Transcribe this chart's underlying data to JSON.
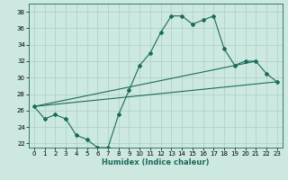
{
  "xlabel": "Humidex (Indice chaleur)",
  "xlim": [
    -0.5,
    23.5
  ],
  "ylim": [
    21.5,
    39.0
  ],
  "yticks": [
    22,
    24,
    26,
    28,
    30,
    32,
    34,
    36,
    38
  ],
  "xticks": [
    0,
    1,
    2,
    3,
    4,
    5,
    6,
    7,
    8,
    9,
    10,
    11,
    12,
    13,
    14,
    15,
    16,
    17,
    18,
    19,
    20,
    21,
    22,
    23
  ],
  "bg_color": "#cce8e0",
  "grid_color": "#aacfc8",
  "line_color": "#1a6b5a",
  "line1_x": [
    0,
    1,
    2,
    3,
    4,
    5,
    6,
    7,
    8,
    9,
    10,
    11,
    12,
    13,
    14,
    15,
    16,
    17,
    18,
    19,
    20,
    21,
    22,
    23
  ],
  "line1_y": [
    26.5,
    25.0,
    25.5,
    25.0,
    23.0,
    22.5,
    21.5,
    21.5,
    25.5,
    28.5,
    31.5,
    33.0,
    35.5,
    37.5,
    37.5,
    36.5,
    37.0,
    37.5,
    33.5,
    31.5,
    32.0,
    32.0,
    30.5,
    29.5
  ],
  "line2_x": [
    0,
    21
  ],
  "line2_y": [
    26.5,
    32.0
  ],
  "line3_x": [
    0,
    23
  ],
  "line3_y": [
    26.5,
    29.5
  ]
}
